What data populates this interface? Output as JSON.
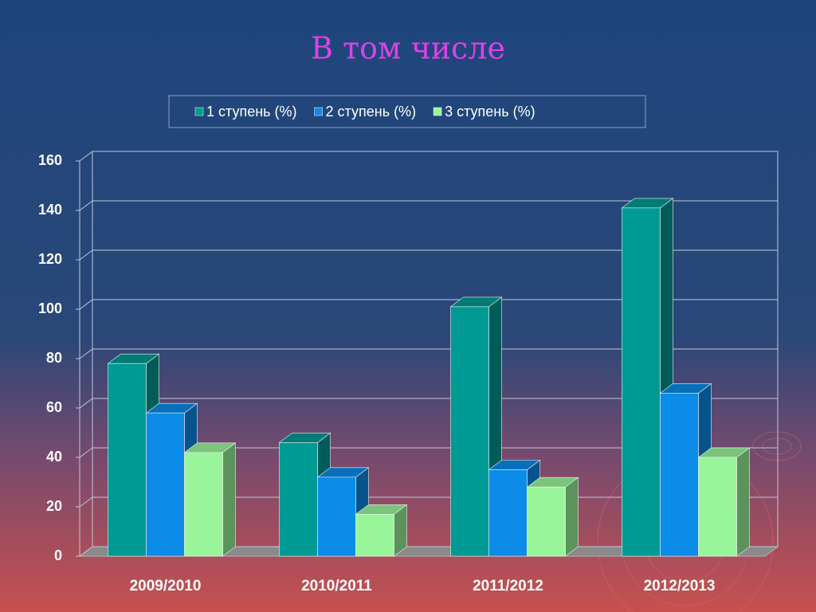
{
  "chart_data": {
    "type": "bar3d",
    "title": "В том числе",
    "categories": [
      "2009/2010",
      "2010/2011",
      "2011/2012",
      "2012/2013"
    ],
    "series": [
      {
        "name": "1 ступень (%)",
        "color": "#009a94",
        "values": [
          78,
          46,
          101,
          141
        ]
      },
      {
        "name": "2 ступень (%)",
        "color": "#0a8ce8",
        "values": [
          58,
          32,
          35,
          66
        ]
      },
      {
        "name": "3 ступень (%)",
        "color": "#99f59a",
        "values": [
          42,
          17,
          28,
          40
        ]
      }
    ],
    "ylim": [
      0,
      160
    ],
    "yticks": [
      0,
      20,
      40,
      60,
      80,
      100,
      120,
      140,
      160
    ],
    "grid": true
  }
}
